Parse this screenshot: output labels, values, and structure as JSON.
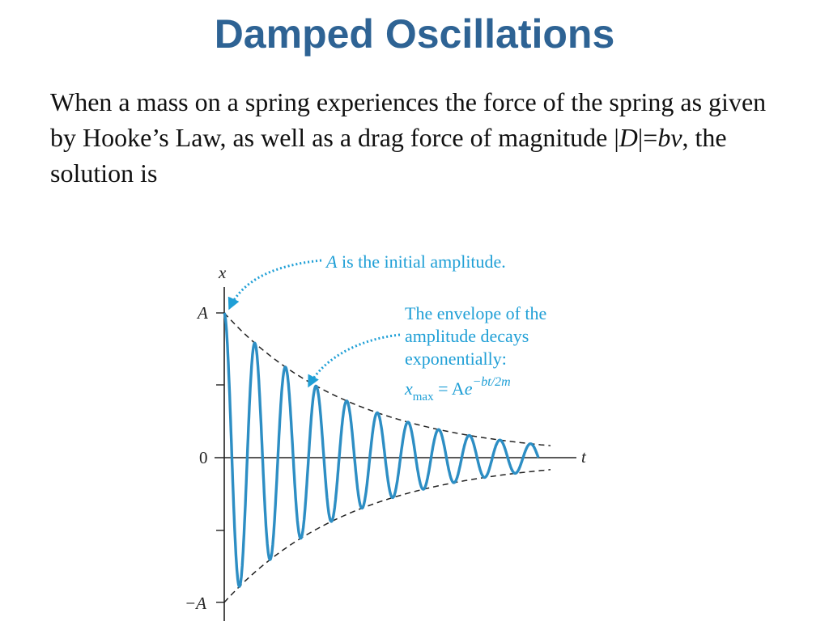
{
  "slide": {
    "title": "Damped Oscillations",
    "body": {
      "part1": "When a mass on a spring experiences the force of the spring as given by Hooke’s Law, as well as a drag force of magnitude |",
      "D": "D",
      "part2": "|=",
      "bv": "bv",
      "part3": ", the solution is"
    }
  },
  "figure": {
    "axis": {
      "x_label": "x",
      "t_label": "t",
      "tick_A": "A",
      "tick_0": "0",
      "tick_neg_A": "−A"
    },
    "annotation_amplitude": {
      "A": "A",
      "text": " is the initial amplitude."
    },
    "annotation_envelope": {
      "line1": "The envelope of the",
      "line2": "amplitude decays",
      "line3": "exponentially:",
      "x": "x",
      "sub": "max",
      "eq": " = A",
      "e": "e",
      "exp": "−bt/2m"
    },
    "colors": {
      "wave": "#2d8ec4",
      "annotation": "#1f9fd6",
      "title": "#2e6394"
    }
  }
}
